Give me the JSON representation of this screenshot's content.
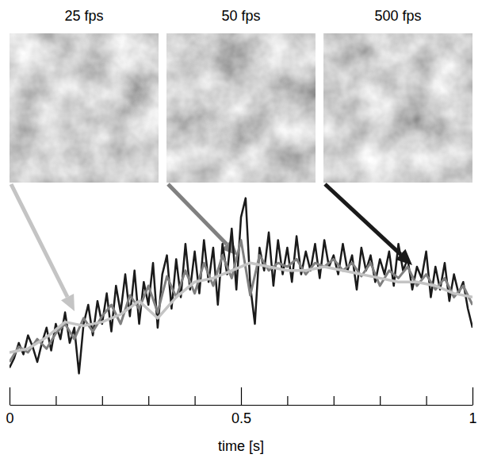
{
  "chart_data": {
    "type": "line",
    "x_label": "time [s]",
    "xlim": [
      0,
      1
    ],
    "ylim": [
      0,
      1
    ],
    "xticks": [
      0,
      {
        "value": 0.1,
        "label": null
      },
      {
        "value": 0.2,
        "label": null
      },
      {
        "value": 0.3,
        "label": null
      },
      {
        "value": 0.4,
        "label": null
      },
      0.5,
      {
        "value": 0.6,
        "label": null
      },
      {
        "value": 0.7,
        "label": null
      },
      {
        "value": 0.8,
        "label": null
      },
      {
        "value": 0.9,
        "label": null
      },
      1
    ],
    "tick_labels": "x",
    "grid": false,
    "series": [
      {
        "name": "25 fps",
        "color": "#c4c4c4",
        "x": [
          0,
          0.04,
          0.08,
          0.12,
          0.16,
          0.2,
          0.24,
          0.28,
          0.32,
          0.36,
          0.4,
          0.44,
          0.48,
          0.52,
          0.56,
          0.6,
          0.64,
          0.68,
          0.72,
          0.76,
          0.8,
          0.84,
          0.88,
          0.92,
          0.96,
          1
        ],
        "values": [
          0.15,
          0.17,
          0.23,
          0.31,
          0.29,
          0.31,
          0.35,
          0.42,
          0.33,
          0.44,
          0.52,
          0.54,
          0.58,
          0.62,
          0.6,
          0.58,
          0.58,
          0.6,
          0.58,
          0.56,
          0.54,
          0.52,
          0.52,
          0.5,
          0.46,
          0.44
        ]
      },
      {
        "name": "50 fps",
        "color": "#808080",
        "x": [
          0,
          0.02,
          0.04,
          0.06,
          0.08,
          0.1,
          0.12,
          0.14,
          0.16,
          0.18,
          0.2,
          0.22,
          0.24,
          0.26,
          0.28,
          0.3,
          0.32,
          0.34,
          0.36,
          0.38,
          0.4,
          0.42,
          0.44,
          0.46,
          0.48,
          0.5,
          0.52,
          0.54,
          0.56,
          0.58,
          0.6,
          0.62,
          0.64,
          0.66,
          0.68,
          0.7,
          0.72,
          0.74,
          0.76,
          0.78,
          0.8,
          0.82,
          0.84,
          0.86,
          0.88,
          0.9,
          0.92,
          0.94,
          0.96,
          0.98,
          1
        ],
        "values": [
          0.1,
          0.18,
          0.15,
          0.22,
          0.17,
          0.25,
          0.3,
          0.22,
          0.33,
          0.26,
          0.34,
          0.4,
          0.3,
          0.45,
          0.38,
          0.5,
          0.36,
          0.55,
          0.44,
          0.58,
          0.46,
          0.62,
          0.5,
          0.66,
          0.54,
          0.74,
          0.45,
          0.66,
          0.58,
          0.62,
          0.6,
          0.64,
          0.56,
          0.62,
          0.6,
          0.64,
          0.58,
          0.62,
          0.55,
          0.62,
          0.5,
          0.58,
          0.54,
          0.6,
          0.5,
          0.56,
          0.48,
          0.54,
          0.44,
          0.5,
          0.4
        ]
      },
      {
        "name": "500 fps",
        "color": "#1a1a1a",
        "x": [
          0,
          0.01,
          0.02,
          0.03,
          0.04,
          0.05,
          0.06,
          0.07,
          0.08,
          0.09,
          0.1,
          0.11,
          0.12,
          0.13,
          0.14,
          0.15,
          0.16,
          0.17,
          0.18,
          0.19,
          0.2,
          0.21,
          0.22,
          0.23,
          0.24,
          0.25,
          0.26,
          0.27,
          0.28,
          0.29,
          0.3,
          0.31,
          0.32,
          0.33,
          0.34,
          0.35,
          0.36,
          0.37,
          0.38,
          0.39,
          0.4,
          0.41,
          0.42,
          0.43,
          0.44,
          0.45,
          0.46,
          0.47,
          0.48,
          0.49,
          0.5,
          0.51,
          0.52,
          0.53,
          0.54,
          0.55,
          0.56,
          0.57,
          0.58,
          0.59,
          0.6,
          0.61,
          0.62,
          0.63,
          0.64,
          0.65,
          0.66,
          0.67,
          0.68,
          0.69,
          0.7,
          0.71,
          0.72,
          0.73,
          0.74,
          0.75,
          0.76,
          0.77,
          0.78,
          0.79,
          0.8,
          0.81,
          0.82,
          0.83,
          0.84,
          0.85,
          0.86,
          0.87,
          0.88,
          0.89,
          0.9,
          0.91,
          0.92,
          0.93,
          0.94,
          0.95,
          0.96,
          0.97,
          0.98,
          0.99,
          1
        ],
        "values": [
          0.07,
          0.12,
          0.2,
          0.14,
          0.24,
          0.18,
          0.1,
          0.2,
          0.28,
          0.16,
          0.3,
          0.22,
          0.36,
          0.2,
          0.28,
          0.04,
          0.3,
          0.4,
          0.24,
          0.42,
          0.3,
          0.46,
          0.26,
          0.5,
          0.36,
          0.56,
          0.34,
          0.58,
          0.3,
          0.52,
          0.4,
          0.62,
          0.28,
          0.56,
          0.66,
          0.38,
          0.64,
          0.44,
          0.72,
          0.48,
          0.68,
          0.46,
          0.74,
          0.52,
          0.7,
          0.4,
          0.72,
          0.56,
          0.8,
          0.48,
          0.86,
          0.96,
          0.5,
          0.3,
          0.7,
          0.58,
          0.78,
          0.5,
          0.74,
          0.56,
          0.7,
          0.52,
          0.76,
          0.56,
          0.68,
          0.58,
          0.72,
          0.54,
          0.74,
          0.6,
          0.66,
          0.56,
          0.72,
          0.58,
          0.66,
          0.48,
          0.7,
          0.58,
          0.66,
          0.52,
          0.64,
          0.56,
          0.68,
          0.5,
          0.72,
          0.58,
          0.64,
          0.48,
          0.6,
          0.54,
          0.68,
          0.44,
          0.6,
          0.48,
          0.62,
          0.42,
          0.56,
          0.46,
          0.52,
          0.38,
          0.28
        ]
      }
    ]
  }
}
